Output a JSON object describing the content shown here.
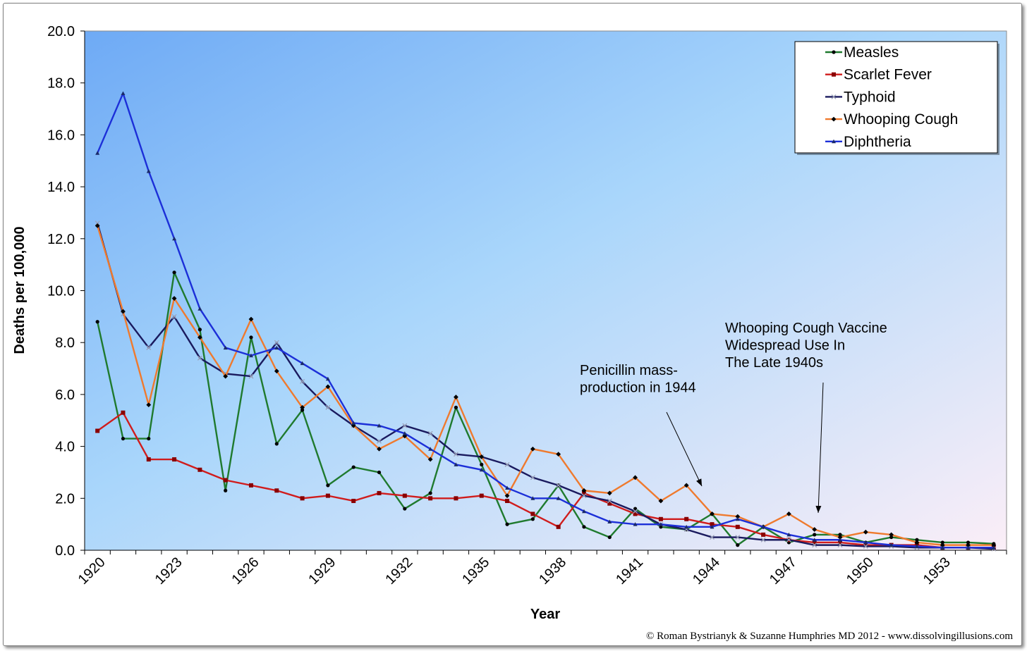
{
  "chart_data": {
    "type": "line",
    "title": "",
    "xlabel": "Year",
    "ylabel": "Deaths per 100,000",
    "ylim": [
      0,
      20
    ],
    "y_ticks": [
      "0.0",
      "2.0",
      "4.0",
      "6.0",
      "8.0",
      "10.0",
      "12.0",
      "14.0",
      "16.0",
      "18.0",
      "20.0"
    ],
    "x": [
      1920,
      1921,
      1922,
      1923,
      1924,
      1925,
      1926,
      1927,
      1928,
      1929,
      1930,
      1931,
      1932,
      1933,
      1934,
      1935,
      1936,
      1937,
      1938,
      1939,
      1940,
      1941,
      1942,
      1943,
      1944,
      1945,
      1946,
      1947,
      1948,
      1949,
      1950,
      1951,
      1952,
      1953,
      1954,
      1955
    ],
    "x_tick_labels": [
      "1920",
      "1923",
      "1926",
      "1929",
      "1932",
      "1935",
      "1938",
      "1941",
      "1944",
      "1947",
      "1950",
      "1953"
    ],
    "grid": false,
    "legend_position": "top-right",
    "series": [
      {
        "name": "Measles",
        "color": "#1f7a2e",
        "marker": "circle",
        "values": [
          8.8,
          4.3,
          4.3,
          10.7,
          8.5,
          2.3,
          8.2,
          4.1,
          5.4,
          2.5,
          3.2,
          3.0,
          1.6,
          2.2,
          5.5,
          3.3,
          1.0,
          1.2,
          2.5,
          0.9,
          0.5,
          1.6,
          0.9,
          0.8,
          1.4,
          0.2,
          0.9,
          0.3,
          0.6,
          0.6,
          0.3,
          0.5,
          0.4,
          0.3,
          0.3,
          0.25
        ]
      },
      {
        "name": "Scarlet Fever",
        "color": "#d01c1c",
        "marker": "square",
        "values": [
          4.6,
          5.3,
          3.5,
          3.5,
          3.1,
          2.7,
          2.5,
          2.3,
          2.0,
          2.1,
          1.9,
          2.2,
          2.1,
          2.0,
          2.0,
          2.1,
          1.9,
          1.4,
          0.9,
          2.2,
          1.8,
          1.4,
          1.2,
          1.2,
          1.0,
          0.9,
          0.6,
          0.4,
          0.3,
          0.3,
          0.2,
          0.2,
          0.2,
          0.1,
          0.1,
          0.1
        ]
      },
      {
        "name": "Typhoid",
        "color": "#1a1a5e",
        "marker": "x",
        "values": [
          12.6,
          9.1,
          7.8,
          9.0,
          7.4,
          6.8,
          6.7,
          8.0,
          6.5,
          5.5,
          4.8,
          4.2,
          4.8,
          4.5,
          3.7,
          3.6,
          3.3,
          2.8,
          2.5,
          2.1,
          1.9,
          1.5,
          1.0,
          0.8,
          0.5,
          0.5,
          0.4,
          0.4,
          0.2,
          0.2,
          0.15,
          0.15,
          0.1,
          0.1,
          0.1,
          0.05
        ]
      },
      {
        "name": "Whooping Cough",
        "color": "#ef7a2e",
        "marker": "diamond",
        "values": [
          12.5,
          9.2,
          5.6,
          9.7,
          8.2,
          6.7,
          8.9,
          6.9,
          5.5,
          6.3,
          4.8,
          3.9,
          4.4,
          3.5,
          5.9,
          3.6,
          2.1,
          3.9,
          3.7,
          2.3,
          2.2,
          2.8,
          1.9,
          2.5,
          1.4,
          1.3,
          0.9,
          1.4,
          0.8,
          0.5,
          0.7,
          0.6,
          0.3,
          0.2,
          0.2,
          0.2
        ]
      },
      {
        "name": "Diphtheria",
        "color": "#1c2fd8",
        "marker": "triangle",
        "values": [
          15.3,
          17.6,
          14.6,
          12.0,
          9.3,
          7.8,
          7.5,
          7.8,
          7.2,
          6.6,
          4.9,
          4.8,
          4.5,
          3.9,
          3.3,
          3.1,
          2.4,
          2.0,
          2.0,
          1.5,
          1.1,
          1.0,
          1.0,
          0.9,
          0.9,
          1.2,
          0.9,
          0.6,
          0.4,
          0.4,
          0.3,
          0.2,
          0.15,
          0.1,
          0.1,
          0.1
        ]
      }
    ],
    "annotations": [
      {
        "lines": [
          "Penicillin mass-",
          "production in 1944"
        ],
        "points_to_year": 1944
      },
      {
        "lines": [
          "Whooping Cough Vaccine",
          "Widespread Use In",
          "The Late 1940s"
        ],
        "points_to_year": 1948
      }
    ]
  },
  "copyright": "© Roman Bystrianyk & Suzanne Humphries MD 2012 - www.dissolvingillusions.com",
  "colors": {
    "plot_bg_left": "#6eaaf5",
    "plot_bg_mid": "#a9d6fb",
    "plot_bg_right": "#fbeef7"
  }
}
